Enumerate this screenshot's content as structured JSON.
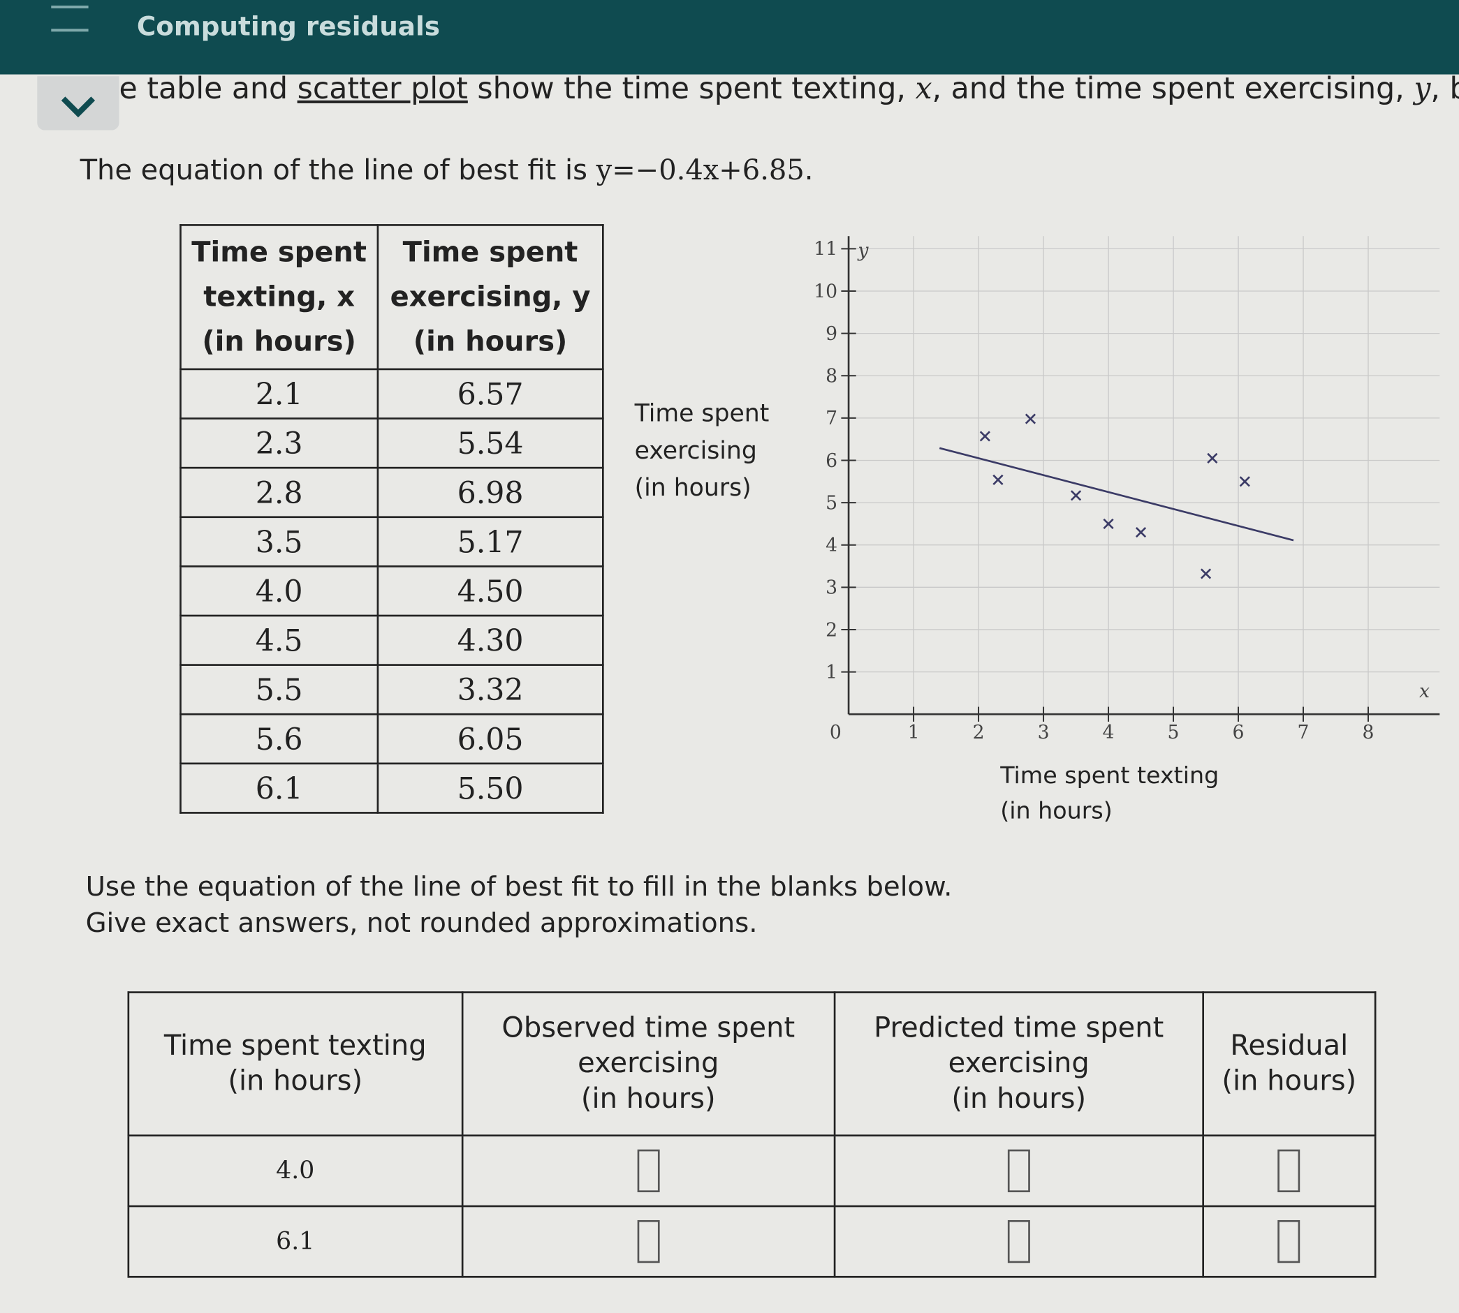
{
  "header": {
    "title": "Computing residuals"
  },
  "intro": {
    "parts": [
      "e table and ",
      "scatter plot",
      " show the time spent texting, ",
      "x",
      ", and the time spent exercising, ",
      "y",
      ", by"
    ]
  },
  "equation": {
    "prefix": "The equation of the line of best fit is ",
    "formula": "y=−0.4x+6.85",
    "suffix": "."
  },
  "data_table": {
    "headers": [
      [
        "Time spent",
        "texting, x",
        "(in hours)"
      ],
      [
        "Time spent",
        "exercising, y",
        "(in hours)"
      ]
    ],
    "rows": [
      [
        "2.1",
        "6.57"
      ],
      [
        "2.3",
        "5.54"
      ],
      [
        "2.8",
        "6.98"
      ],
      [
        "3.5",
        "5.17"
      ],
      [
        "4.0",
        "4.50"
      ],
      [
        "4.5",
        "4.30"
      ],
      [
        "5.5",
        "3.32"
      ],
      [
        "5.6",
        "6.05"
      ],
      [
        "6.1",
        "5.50"
      ]
    ]
  },
  "chart_data": {
    "type": "scatter",
    "x": [
      2.1,
      2.3,
      2.8,
      3.5,
      4.0,
      4.5,
      5.5,
      5.6,
      6.1
    ],
    "y": [
      6.57,
      5.54,
      6.98,
      5.17,
      4.5,
      4.3,
      3.32,
      6.05,
      5.5
    ],
    "color": "#3b3b66",
    "fit_line": {
      "slope": -0.4,
      "intercept": 6.85,
      "x_start": 1.4,
      "x_end": 6.85,
      "color": "#3b3b66"
    },
    "xlim": [
      0,
      9.1
    ],
    "ylim": [
      0,
      11.3
    ],
    "xticks": [
      0,
      1,
      2,
      3,
      4,
      5,
      6,
      7,
      8
    ],
    "yticks": [
      1,
      2,
      3,
      4,
      5,
      6,
      7,
      8,
      9,
      10,
      11
    ],
    "x_axis_name": "x",
    "y_axis_name": "y",
    "xlabel": [
      "Time spent texting",
      "(in hours)"
    ],
    "ylabel": [
      "Time spent",
      "exercising",
      "(in hours)"
    ],
    "grid": true
  },
  "instructions": [
    "Use the equation of the line of best fit to fill in the blanks below.",
    "Give exact answers, not rounded approximations."
  ],
  "answer_table": {
    "headers": [
      [
        "Time spent texting",
        "(in hours)"
      ],
      [
        "Observed time spent",
        "exercising",
        "(in hours)"
      ],
      [
        "Predicted time spent",
        "exercising",
        "(in hours)"
      ],
      [
        "Residual",
        "(in hours)"
      ]
    ],
    "rows": [
      [
        "4.0"
      ],
      [
        "6.1"
      ]
    ]
  }
}
